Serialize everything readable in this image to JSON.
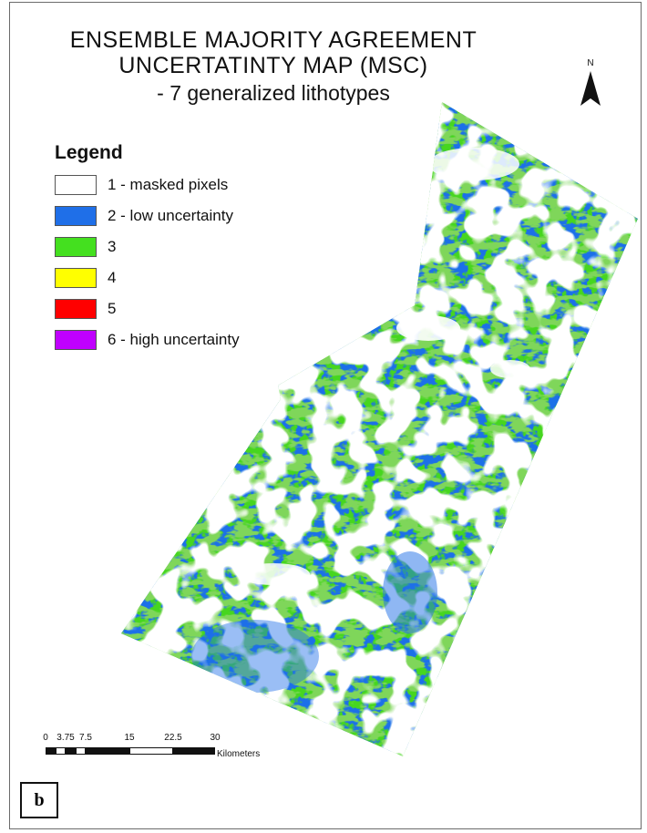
{
  "title": {
    "line1": "ENSEMBLE MAJORITY AGREEMENT",
    "line2": "UNCERTATINTY MAP (MSC)",
    "line3": "- 7 generalized lithotypes"
  },
  "north_arrow": {
    "label": "N",
    "icon": "north-arrow-icon"
  },
  "legend": {
    "title": "Legend",
    "items": [
      {
        "label": "1 - masked pixels",
        "color": "#ffffff"
      },
      {
        "label": "2 - low uncertainty",
        "color": "#1f6fe8"
      },
      {
        "label": "3",
        "color": "#44e01f"
      },
      {
        "label": "4",
        "color": "#ffff00"
      },
      {
        "label": "5",
        "color": "#ff0000"
      },
      {
        "label": "6 - high uncertainty",
        "color": "#c000ff"
      }
    ]
  },
  "scale_bar": {
    "ticks": [
      "0",
      "3.75",
      "7.5",
      "15",
      "22.5",
      "30"
    ],
    "unit": "Kilometers"
  },
  "panel_label": "b"
}
